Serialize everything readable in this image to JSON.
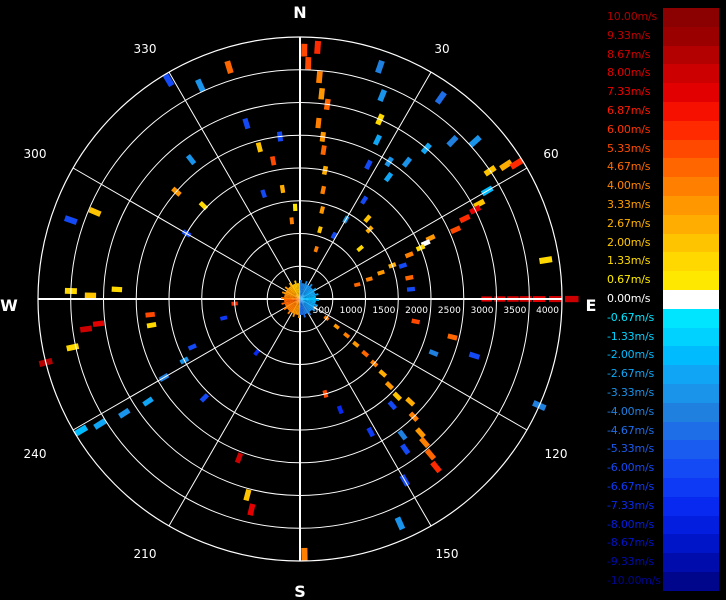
{
  "chart_data": {
    "type": "polar-ppi",
    "compass": {
      "north": "N",
      "east": "E",
      "south": "S",
      "west": "W"
    },
    "bearing_labels": [
      "30",
      "60",
      "120",
      "150",
      "210",
      "240",
      "300",
      "330"
    ],
    "range_labels": [
      "500",
      "1000",
      "1500",
      "2000",
      "2500",
      "3000",
      "3500",
      "4000"
    ],
    "range_rings": 8,
    "max_range": 4000,
    "radial_lines_deg": [
      0,
      30,
      60,
      90,
      120,
      150,
      180,
      210,
      240,
      270,
      300,
      330
    ],
    "color_scale": [
      {
        "label": "10.00m/s",
        "color": "#8b0000",
        "text_color": "#b00000"
      },
      {
        "label": "9.33m/s",
        "color": "#9a0000",
        "text_color": "#c00000"
      },
      {
        "label": "8.67m/s",
        "color": "#b30000",
        "text_color": "#d00000"
      },
      {
        "label": "8.00m/s",
        "color": "#cc0000",
        "text_color": "#e00000"
      },
      {
        "label": "7.33m/s",
        "color": "#e30000",
        "text_color": "#f00000"
      },
      {
        "label": "6.87m/s",
        "color": "#f51000",
        "text_color": "#ff1a00"
      },
      {
        "label": "6.00m/s",
        "color": "#ff2a00",
        "text_color": "#ff3300"
      },
      {
        "label": "5.33m/s",
        "color": "#ff4800",
        "text_color": "#ff4c00"
      },
      {
        "label": "4.67m/s",
        "color": "#ff6600",
        "text_color": "#ff6a00"
      },
      {
        "label": "4.00m/s",
        "color": "#ff7f00",
        "text_color": "#ff8400"
      },
      {
        "label": "3.33m/s",
        "color": "#ff9800",
        "text_color": "#ff9e00"
      },
      {
        "label": "2.67m/s",
        "color": "#ffad00",
        "text_color": "#ffb300"
      },
      {
        "label": "2.00m/s",
        "color": "#ffc400",
        "text_color": "#ffc800"
      },
      {
        "label": "1.33m/s",
        "color": "#ffd800",
        "text_color": "#ffdc00"
      },
      {
        "label": "0.67m/s",
        "color": "#ffe800",
        "text_color": "#ffee00"
      },
      {
        "label": "0.00m/s",
        "color": "#ffffff",
        "text_color": "#ffffff"
      },
      {
        "label": "-0.67m/s",
        "color": "#00e5ff",
        "text_color": "#00e5ff"
      },
      {
        "label": "-1.33m/s",
        "color": "#00d2ff",
        "text_color": "#00d2ff"
      },
      {
        "label": "-2.00m/s",
        "color": "#00bcff",
        "text_color": "#00bcff"
      },
      {
        "label": "-2.67m/s",
        "color": "#10a6f5",
        "text_color": "#10a6f5"
      },
      {
        "label": "-3.33m/s",
        "color": "#1a93ea",
        "text_color": "#1a93ea"
      },
      {
        "label": "-4.00m/s",
        "color": "#1f80e0",
        "text_color": "#1f80e0"
      },
      {
        "label": "-4.67m/s",
        "color": "#1e6ee8",
        "text_color": "#1e6ee8"
      },
      {
        "label": "-5.33m/s",
        "color": "#1a5cf0",
        "text_color": "#1a5cf0"
      },
      {
        "label": "-6.00m/s",
        "color": "#144af5",
        "text_color": "#144af5"
      },
      {
        "label": "-6.67m/s",
        "color": "#0e3af5",
        "text_color": "#0e3af5"
      },
      {
        "label": "-7.33m/s",
        "color": "#082af0",
        "text_color": "#082af0"
      },
      {
        "label": "-8.00m/s",
        "color": "#041ee0",
        "text_color": "#041ee0"
      },
      {
        "label": "-8.67m/s",
        "color": "#0014c8",
        "text_color": "#0014c8"
      },
      {
        "label": "-9.33m/s",
        "color": "#000cac",
        "text_color": "#000cac"
      },
      {
        "label": "-10.00m/s",
        "color": "#00068c",
        "text_color": "#00068c"
      }
    ],
    "gates": [
      {
        "az": 1,
        "r": 3800,
        "v": 5.0
      },
      {
        "az": 4,
        "r": 3850,
        "v": 6.0
      },
      {
        "az": 2,
        "r": 3600,
        "v": 5.3
      },
      {
        "az": 5,
        "r": 3400,
        "v": 4.0
      },
      {
        "az": 6,
        "r": 3150,
        "v": 3.3
      },
      {
        "az": 8,
        "r": 3000,
        "v": 4.7
      },
      {
        "az": 6,
        "r": 2700,
        "v": 4.0
      },
      {
        "az": 8,
        "r": 2500,
        "v": 3.3
      },
      {
        "az": 9,
        "r": 2300,
        "v": 4.7
      },
      {
        "az": 11,
        "r": 2000,
        "v": 2.7
      },
      {
        "az": 12,
        "r": 1700,
        "v": 4.0
      },
      {
        "az": 14,
        "r": 1400,
        "v": 3.3
      },
      {
        "az": 16,
        "r": 1100,
        "v": 2.0
      },
      {
        "az": 18,
        "r": 800,
        "v": 4.0
      },
      {
        "az": 19,
        "r": 3750,
        "v": -4.0
      },
      {
        "az": 22,
        "r": 3350,
        "v": -3.3
      },
      {
        "az": 24,
        "r": 3000,
        "v": 1.3
      },
      {
        "az": 26,
        "r": 2700,
        "v": -2.7
      },
      {
        "az": 27,
        "r": 2300,
        "v": -6.0
      },
      {
        "az": 33,
        "r": 2500,
        "v": -3.3
      },
      {
        "az": 36,
        "r": 2300,
        "v": -2.7
      },
      {
        "az": 38,
        "r": 2650,
        "v": -3.3
      },
      {
        "az": 40,
        "r": 3000,
        "v": -2.7
      },
      {
        "az": 44,
        "r": 3350,
        "v": -4.0
      },
      {
        "az": 48,
        "r": 3600,
        "v": -3.3
      },
      {
        "az": 35,
        "r": 3750,
        "v": -4.7
      },
      {
        "az": 33,
        "r": 1800,
        "v": -6.0
      },
      {
        "az": 30,
        "r": 1400,
        "v": -3.3
      },
      {
        "az": 28,
        "r": 1100,
        "v": -6.0
      },
      {
        "az": 40,
        "r": 1600,
        "v": 2.0
      },
      {
        "az": 45,
        "r": 1500,
        "v": 2.7
      },
      {
        "az": 50,
        "r": 1200,
        "v": 1.3
      },
      {
        "az": 56,
        "r": 3500,
        "v": 2.0
      },
      {
        "az": 57,
        "r": 3750,
        "v": 2.7
      },
      {
        "az": 58,
        "r": 3900,
        "v": 6.0
      },
      {
        "az": 60,
        "r": 3300,
        "v": -2.0
      },
      {
        "az": 62,
        "r": 3100,
        "v": 2.0
      },
      {
        "az": 64,
        "r": 2800,
        "v": 6.0
      },
      {
        "az": 63,
        "r": 3000,
        "v": 7.3
      },
      {
        "az": 66,
        "r": 2600,
        "v": 5.3
      },
      {
        "az": 65,
        "r": 2200,
        "v": 3.3
      },
      {
        "az": 66,
        "r": 2100,
        "v": 0.0
      },
      {
        "az": 67,
        "r": 2000,
        "v": 1.3
      },
      {
        "az": 68,
        "r": 1800,
        "v": 4.0
      },
      {
        "az": 70,
        "r": 1500,
        "v": 2.7
      },
      {
        "az": 72,
        "r": 1300,
        "v": 3.3
      },
      {
        "az": 74,
        "r": 1100,
        "v": 4.0
      },
      {
        "az": 76,
        "r": 900,
        "v": 4.7
      },
      {
        "az": 72,
        "r": 1650,
        "v": -6.0
      },
      {
        "az": 79,
        "r": 1700,
        "v": 4.7
      },
      {
        "az": 85,
        "r": 1700,
        "v": -6.0
      },
      {
        "az": 81,
        "r": 3800,
        "v": 1.3
      },
      {
        "az": 90,
        "r": 3900,
        "v": 8.0
      },
      {
        "az": 90,
        "r": 3650,
        "v": 7.3
      },
      {
        "az": 90,
        "r": 3450,
        "v": 8.0
      },
      {
        "az": 90,
        "r": 3250,
        "v": 8.0
      },
      {
        "az": 90,
        "r": 3050,
        "v": 7.3
      },
      {
        "az": 90,
        "r": 2850,
        "v": 7.3
      },
      {
        "az": 90,
        "r": 4150,
        "v": 8.0
      },
      {
        "az": 101,
        "r": 1800,
        "v": 5.3
      },
      {
        "az": 104,
        "r": 2400,
        "v": 4.7
      },
      {
        "az": 108,
        "r": 2800,
        "v": -6.0
      },
      {
        "az": 112,
        "r": 2200,
        "v": -4.0
      },
      {
        "az": 114,
        "r": 4000,
        "v": -4.0
      },
      {
        "az": 126,
        "r": 500,
        "v": 4.0
      },
      {
        "az": 127,
        "r": 700,
        "v": 3.3
      },
      {
        "az": 128,
        "r": 900,
        "v": 4.0
      },
      {
        "az": 129,
        "r": 1100,
        "v": 3.3
      },
      {
        "az": 130,
        "r": 1300,
        "v": 4.7
      },
      {
        "az": 131,
        "r": 1500,
        "v": 4.0
      },
      {
        "az": 132,
        "r": 1700,
        "v": 2.7
      },
      {
        "az": 134,
        "r": 1900,
        "v": 3.3
      },
      {
        "az": 135,
        "r": 2100,
        "v": 2.0
      },
      {
        "az": 133,
        "r": 2300,
        "v": 2.7
      },
      {
        "az": 136,
        "r": 2500,
        "v": 4.0
      },
      {
        "az": 138,
        "r": 2750,
        "v": 3.3
      },
      {
        "az": 139,
        "r": 2900,
        "v": 4.0
      },
      {
        "az": 140,
        "r": 3100,
        "v": 4.7
      },
      {
        "az": 141,
        "r": 3300,
        "v": 6.0
      },
      {
        "az": 139,
        "r": 2150,
        "v": -6.0
      },
      {
        "az": 143,
        "r": 2600,
        "v": -4.0
      },
      {
        "az": 145,
        "r": 2800,
        "v": -6.0
      },
      {
        "az": 150,
        "r": 3200,
        "v": -6.0
      },
      {
        "az": 156,
        "r": 3750,
        "v": -3.3
      },
      {
        "az": 152,
        "r": 2300,
        "v": -6.7
      },
      {
        "az": 160,
        "r": 1800,
        "v": -7.3
      },
      {
        "az": 165,
        "r": 1500,
        "v": 5.3
      },
      {
        "az": 179,
        "r": 3900,
        "v": 4.0
      },
      {
        "az": 193,
        "r": 3300,
        "v": 7.3
      },
      {
        "az": 195,
        "r": 3100,
        "v": 2.0
      },
      {
        "az": 201,
        "r": 2600,
        "v": 8.0
      },
      {
        "az": 219,
        "r": 1050,
        "v": -7.3
      },
      {
        "az": 224,
        "r": 2100,
        "v": -6.0
      },
      {
        "az": 236,
        "r": 2800,
        "v": -2.7
      },
      {
        "az": 237,
        "r": 3200,
        "v": -3.3
      },
      {
        "az": 238,
        "r": 3600,
        "v": -2.7
      },
      {
        "az": 239,
        "r": 3900,
        "v": -2.0
      },
      {
        "az": 240,
        "r": 2400,
        "v": -4.0
      },
      {
        "az": 242,
        "r": 2000,
        "v": -3.3
      },
      {
        "az": 246,
        "r": 1800,
        "v": -6.0
      },
      {
        "az": 256,
        "r": 1200,
        "v": -6.7
      },
      {
        "az": 260,
        "r": 2300,
        "v": 1.3
      },
      {
        "az": 263,
        "r": 3100,
        "v": 7.3
      },
      {
        "az": 262,
        "r": 3300,
        "v": 8.0
      },
      {
        "az": 258,
        "r": 3550,
        "v": 1.3
      },
      {
        "az": 256,
        "r": 4000,
        "v": 8.7
      },
      {
        "az": 264,
        "r": 2300,
        "v": 5.3
      },
      {
        "az": 272,
        "r": 3500,
        "v": 1.3
      },
      {
        "az": 271,
        "r": 3200,
        "v": 2.0
      },
      {
        "az": 273,
        "r": 2800,
        "v": 1.3
      },
      {
        "az": 266,
        "r": 1000,
        "v": 6.0
      },
      {
        "az": 289,
        "r": 3700,
        "v": -6.0
      },
      {
        "az": 293,
        "r": 3400,
        "v": 2.0
      },
      {
        "az": 300,
        "r": 2000,
        "v": -6.0
      },
      {
        "az": 311,
        "r": 2500,
        "v": 3.3
      },
      {
        "az": 314,
        "r": 2050,
        "v": 1.3
      },
      {
        "az": 322,
        "r": 2700,
        "v": -3.3
      },
      {
        "az": 329,
        "r": 3900,
        "v": -6.0
      },
      {
        "az": 335,
        "r": 3600,
        "v": -3.3
      },
      {
        "az": 343,
        "r": 3700,
        "v": 4.7
      },
      {
        "az": 343,
        "r": 2800,
        "v": -6.0
      },
      {
        "az": 345,
        "r": 2400,
        "v": 2.0
      },
      {
        "az": 349,
        "r": 2150,
        "v": 5.3
      },
      {
        "az": 353,
        "r": 2500,
        "v": -6.0
      },
      {
        "az": 341,
        "r": 1700,
        "v": -6.0
      },
      {
        "az": 354,
        "r": 1200,
        "v": 4.0
      },
      {
        "az": 357,
        "r": 1400,
        "v": 0.67
      },
      {
        "az": 351,
        "r": 1700,
        "v": 2.7
      }
    ]
  }
}
